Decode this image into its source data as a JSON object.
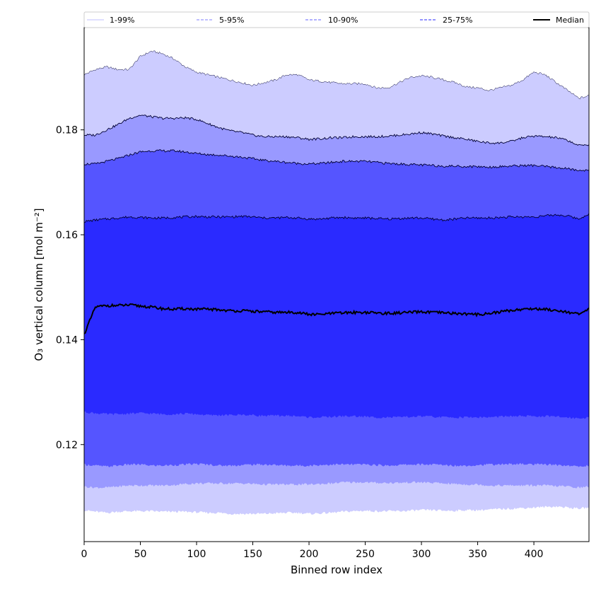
{
  "chart_data": {
    "type": "area",
    "xlabel": "Binned row index",
    "ylabel": "O₃ vertical column [mol m⁻²]",
    "xlim": [
      0,
      449
    ],
    "ylim": [
      0.1015,
      0.1995
    ],
    "x_ticks": [
      0,
      50,
      100,
      150,
      200,
      250,
      300,
      350,
      400
    ],
    "y_ticks": [
      0.12,
      0.14,
      0.16,
      0.18
    ],
    "y_tick_labels": [
      "0.12",
      "0.14",
      "0.16",
      "0.18"
    ],
    "x": [
      0,
      10,
      20,
      30,
      40,
      50,
      60,
      70,
      80,
      90,
      100,
      110,
      120,
      130,
      140,
      150,
      160,
      170,
      180,
      190,
      200,
      210,
      220,
      230,
      240,
      250,
      260,
      270,
      280,
      290,
      300,
      310,
      320,
      330,
      340,
      350,
      360,
      370,
      380,
      390,
      400,
      410,
      420,
      430,
      440,
      449
    ],
    "bands": [
      {
        "name": "1-99%",
        "color": "#ccccff",
        "upper": [
          0.1905,
          0.1915,
          0.192,
          0.1915,
          0.1915,
          0.194,
          0.195,
          0.1945,
          0.1935,
          0.192,
          0.191,
          0.1905,
          0.19,
          0.1895,
          0.189,
          0.1885,
          0.189,
          0.1895,
          0.1905,
          0.1905,
          0.1895,
          0.1893,
          0.189,
          0.1888,
          0.1888,
          0.1888,
          0.188,
          0.188,
          0.189,
          0.19,
          0.1903,
          0.19,
          0.1895,
          0.189,
          0.1882,
          0.188,
          0.1875,
          0.188,
          0.1885,
          0.1895,
          0.191,
          0.1905,
          0.189,
          0.1875,
          0.186,
          0.1865
        ],
        "lower": [
          0.1075,
          0.1072,
          0.107,
          0.1072,
          0.1073,
          0.1073,
          0.1073,
          0.1072,
          0.1072,
          0.1072,
          0.1071,
          0.107,
          0.107,
          0.1068,
          0.1068,
          0.1068,
          0.1068,
          0.1069,
          0.107,
          0.107,
          0.1068,
          0.1069,
          0.107,
          0.1072,
          0.1073,
          0.1074,
          0.1073,
          0.1073,
          0.1073,
          0.1074,
          0.1075,
          0.1075,
          0.1074,
          0.1074,
          0.1075,
          0.1075,
          0.1076,
          0.1077,
          0.1078,
          0.1079,
          0.108,
          0.1081,
          0.1082,
          0.108,
          0.1078,
          0.108
        ]
      },
      {
        "name": "5-95%",
        "color": "#9999ff",
        "upper": [
          0.179,
          0.179,
          0.18,
          0.181,
          0.1822,
          0.1828,
          0.1825,
          0.1822,
          0.1822,
          0.1823,
          0.182,
          0.1812,
          0.1804,
          0.1798,
          0.1795,
          0.179,
          0.1787,
          0.1787,
          0.1787,
          0.1785,
          0.1782,
          0.1783,
          0.1785,
          0.1785,
          0.1787,
          0.1787,
          0.1787,
          0.1788,
          0.179,
          0.1792,
          0.1795,
          0.1792,
          0.1788,
          0.1785,
          0.1782,
          0.1778,
          0.1775,
          0.1775,
          0.1778,
          0.1785,
          0.1788,
          0.1787,
          0.1785,
          0.178,
          0.177,
          0.1772
        ],
        "lower": [
          0.112,
          0.1118,
          0.1118,
          0.112,
          0.1122,
          0.1122,
          0.1122,
          0.1122,
          0.1123,
          0.1125,
          0.1126,
          0.1126,
          0.1126,
          0.1126,
          0.1126,
          0.1125,
          0.1124,
          0.1124,
          0.1124,
          0.1124,
          0.1124,
          0.1125,
          0.1126,
          0.1128,
          0.1128,
          0.1128,
          0.1127,
          0.1127,
          0.1127,
          0.1128,
          0.1128,
          0.1127,
          0.1126,
          0.1125,
          0.1124,
          0.1124,
          0.1122,
          0.1122,
          0.1122,
          0.1122,
          0.1122,
          0.1122,
          0.1121,
          0.112,
          0.1118,
          0.112
        ]
      },
      {
        "name": "10-90%",
        "color": "#5555ff",
        "upper": [
          0.1735,
          0.1735,
          0.174,
          0.1745,
          0.1752,
          0.1758,
          0.176,
          0.176,
          0.176,
          0.1758,
          0.1755,
          0.1753,
          0.1752,
          0.175,
          0.1748,
          0.1745,
          0.1742,
          0.174,
          0.1738,
          0.1736,
          0.1735,
          0.1736,
          0.1738,
          0.174,
          0.174,
          0.174,
          0.1738,
          0.1736,
          0.1735,
          0.1734,
          0.1733,
          0.1732,
          0.1731,
          0.1731,
          0.173,
          0.173,
          0.1729,
          0.173,
          0.1731,
          0.1732,
          0.1732,
          0.173,
          0.1728,
          0.1726,
          0.1722,
          0.1724
        ],
        "lower": [
          0.1162,
          0.116,
          0.1158,
          0.116,
          0.1162,
          0.1162,
          0.116,
          0.116,
          0.1161,
          0.1162,
          0.1163,
          0.1162,
          0.116,
          0.116,
          0.1161,
          0.1162,
          0.1162,
          0.1161,
          0.116,
          0.116,
          0.116,
          0.1161,
          0.1162,
          0.1162,
          0.1162,
          0.1162,
          0.1161,
          0.116,
          0.1161,
          0.1162,
          0.1162,
          0.1162,
          0.1161,
          0.116,
          0.116,
          0.1161,
          0.1162,
          0.1162,
          0.1163,
          0.1163,
          0.1162,
          0.1162,
          0.1161,
          0.116,
          0.1158,
          0.116
        ]
      },
      {
        "name": "25-75%",
        "color": "#2a2aff",
        "upper": [
          0.1625,
          0.1628,
          0.163,
          0.1632,
          0.1634,
          0.1633,
          0.1632,
          0.1632,
          0.1633,
          0.1634,
          0.1635,
          0.1634,
          0.1634,
          0.1634,
          0.1635,
          0.1634,
          0.1632,
          0.1632,
          0.1633,
          0.1632,
          0.163,
          0.163,
          0.1632,
          0.1633,
          0.1632,
          0.1632,
          0.1631,
          0.163,
          0.1631,
          0.1632,
          0.1632,
          0.163,
          0.1628,
          0.163,
          0.1632,
          0.1632,
          0.1632,
          0.1633,
          0.1634,
          0.1634,
          0.1634,
          0.1636,
          0.1638,
          0.1636,
          0.163,
          0.164
        ],
        "lower": [
          0.1262,
          0.126,
          0.1258,
          0.1258,
          0.1259,
          0.126,
          0.1259,
          0.1258,
          0.1258,
          0.1259,
          0.1258,
          0.1256,
          0.1256,
          0.1256,
          0.1257,
          0.1256,
          0.1255,
          0.1255,
          0.1255,
          0.1254,
          0.1252,
          0.1252,
          0.1253,
          0.1254,
          0.1254,
          0.1253,
          0.1252,
          0.1252,
          0.1252,
          0.1253,
          0.1254,
          0.1253,
          0.1252,
          0.1252,
          0.1252,
          0.1252,
          0.1252,
          0.1253,
          0.1254,
          0.1254,
          0.1254,
          0.1254,
          0.1253,
          0.1252,
          0.125,
          0.1252
        ]
      }
    ],
    "median": {
      "name": "Median",
      "color": "#000000",
      "values": [
        0.141,
        0.1462,
        0.1465,
        0.1465,
        0.1466,
        0.1464,
        0.1462,
        0.1459,
        0.1458,
        0.1459,
        0.1458,
        0.1458,
        0.1457,
        0.1455,
        0.1455,
        0.1454,
        0.1453,
        0.1452,
        0.1452,
        0.1452,
        0.1448,
        0.1448,
        0.145,
        0.1451,
        0.1452,
        0.1452,
        0.1451,
        0.145,
        0.1451,
        0.1452,
        0.1453,
        0.1452,
        0.1451,
        0.145,
        0.1449,
        0.1448,
        0.145,
        0.1453,
        0.1456,
        0.1458,
        0.1459,
        0.1458,
        0.1456,
        0.1453,
        0.1448,
        0.1458
      ]
    },
    "legend": {
      "placement": "top",
      "entries": [
        {
          "label": "1-99%",
          "color": "#ccccff",
          "dash": false
        },
        {
          "label": "5-95%",
          "color": "#9999ff",
          "dash": true
        },
        {
          "label": "10-90%",
          "color": "#8080ff",
          "dash": true
        },
        {
          "label": "25-75%",
          "color": "#5555ff",
          "dash": true
        },
        {
          "label": "Median",
          "color": "#000000",
          "dash": false
        }
      ]
    },
    "grid": false
  }
}
